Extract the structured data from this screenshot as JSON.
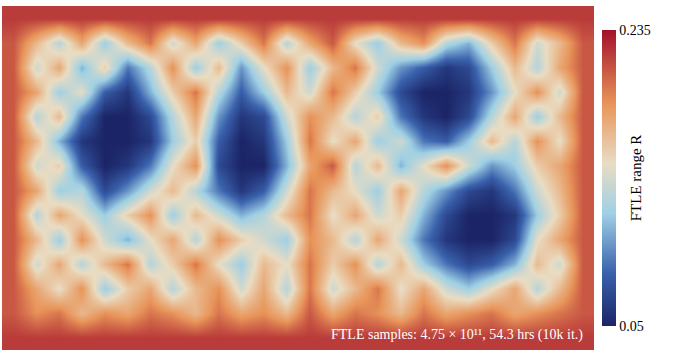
{
  "chart_data": {
    "type": "heatmap",
    "tick_labels": false,
    "z": [
      [
        0.22,
        0.22,
        0.22,
        0.22,
        0.22,
        0.22,
        0.22,
        0.22,
        0.22,
        0.22,
        0.22,
        0.22,
        0.22,
        0.22,
        0.22,
        0.22,
        0.22,
        0.22,
        0.22,
        0.22,
        0.22,
        0.22,
        0.22,
        0.22,
        0.22,
        0.22
      ],
      [
        0.21,
        0.17,
        0.13,
        0.18,
        0.12,
        0.17,
        0.2,
        0.14,
        0.18,
        0.12,
        0.16,
        0.2,
        0.13,
        0.18,
        0.21,
        0.15,
        0.12,
        0.17,
        0.19,
        0.13,
        0.11,
        0.16,
        0.2,
        0.14,
        0.17,
        0.21
      ],
      [
        0.21,
        0.14,
        0.18,
        0.11,
        0.16,
        0.09,
        0.13,
        0.19,
        0.12,
        0.17,
        0.1,
        0.15,
        0.19,
        0.12,
        0.17,
        0.2,
        0.14,
        0.1,
        0.08,
        0.06,
        0.07,
        0.12,
        0.17,
        0.13,
        0.18,
        0.21
      ],
      [
        0.21,
        0.18,
        0.12,
        0.15,
        0.08,
        0.06,
        0.11,
        0.16,
        0.2,
        0.13,
        0.08,
        0.12,
        0.17,
        0.14,
        0.2,
        0.16,
        0.12,
        0.07,
        0.05,
        0.05,
        0.06,
        0.1,
        0.15,
        0.19,
        0.14,
        0.21
      ],
      [
        0.21,
        0.13,
        0.17,
        0.09,
        0.05,
        0.05,
        0.07,
        0.13,
        0.18,
        0.1,
        0.06,
        0.07,
        0.14,
        0.19,
        0.17,
        0.13,
        0.16,
        0.09,
        0.06,
        0.05,
        0.07,
        0.13,
        0.18,
        0.12,
        0.17,
        0.21
      ],
      [
        0.21,
        0.17,
        0.11,
        0.06,
        0.05,
        0.05,
        0.06,
        0.12,
        0.16,
        0.08,
        0.05,
        0.06,
        0.12,
        0.2,
        0.15,
        0.18,
        0.12,
        0.14,
        0.09,
        0.08,
        0.12,
        0.17,
        0.13,
        0.19,
        0.15,
        0.21
      ],
      [
        0.21,
        0.14,
        0.16,
        0.08,
        0.05,
        0.06,
        0.09,
        0.15,
        0.19,
        0.07,
        0.05,
        0.05,
        0.11,
        0.18,
        0.21,
        0.13,
        0.17,
        0.11,
        0.15,
        0.19,
        0.14,
        0.1,
        0.12,
        0.16,
        0.18,
        0.21
      ],
      [
        0.21,
        0.18,
        0.12,
        0.13,
        0.07,
        0.1,
        0.14,
        0.17,
        0.13,
        0.09,
        0.06,
        0.08,
        0.14,
        0.2,
        0.17,
        0.15,
        0.12,
        0.18,
        0.13,
        0.1,
        0.07,
        0.06,
        0.09,
        0.14,
        0.17,
        0.21
      ],
      [
        0.21,
        0.13,
        0.18,
        0.15,
        0.12,
        0.16,
        0.19,
        0.12,
        0.17,
        0.14,
        0.11,
        0.13,
        0.17,
        0.2,
        0.15,
        0.18,
        0.14,
        0.16,
        0.11,
        0.07,
        0.05,
        0.05,
        0.06,
        0.12,
        0.16,
        0.21
      ],
      [
        0.21,
        0.17,
        0.12,
        0.19,
        0.14,
        0.11,
        0.15,
        0.18,
        0.13,
        0.19,
        0.16,
        0.14,
        0.12,
        0.19,
        0.17,
        0.13,
        0.18,
        0.14,
        0.09,
        0.06,
        0.05,
        0.05,
        0.07,
        0.15,
        0.18,
        0.21
      ],
      [
        0.21,
        0.14,
        0.18,
        0.13,
        0.17,
        0.2,
        0.13,
        0.16,
        0.2,
        0.15,
        0.12,
        0.17,
        0.15,
        0.2,
        0.16,
        0.19,
        0.13,
        0.17,
        0.12,
        0.09,
        0.07,
        0.08,
        0.11,
        0.17,
        0.14,
        0.21
      ],
      [
        0.21,
        0.18,
        0.15,
        0.19,
        0.12,
        0.16,
        0.18,
        0.13,
        0.17,
        0.19,
        0.14,
        0.18,
        0.13,
        0.2,
        0.14,
        0.17,
        0.2,
        0.15,
        0.18,
        0.14,
        0.12,
        0.15,
        0.18,
        0.13,
        0.17,
        0.21
      ],
      [
        0.21,
        0.19,
        0.2,
        0.17,
        0.19,
        0.18,
        0.2,
        0.19,
        0.17,
        0.2,
        0.18,
        0.19,
        0.17,
        0.21,
        0.18,
        0.2,
        0.19,
        0.17,
        0.2,
        0.18,
        0.19,
        0.2,
        0.18,
        0.19,
        0.2,
        0.21
      ],
      [
        0.22,
        0.22,
        0.22,
        0.22,
        0.22,
        0.22,
        0.22,
        0.22,
        0.22,
        0.22,
        0.22,
        0.22,
        0.22,
        0.22,
        0.22,
        0.22,
        0.22,
        0.22,
        0.22,
        0.22,
        0.22,
        0.22,
        0.22,
        0.22,
        0.22,
        0.22
      ]
    ],
    "colorbar": {
      "title": "FTLE range R",
      "range": [
        0.05,
        0.235
      ],
      "ticks": [
        0.05,
        0.235
      ]
    },
    "annotations": [
      "FTLE samples: 4.75 × 10¹¹, 54.3 hrs (10k it.)"
    ]
  }
}
